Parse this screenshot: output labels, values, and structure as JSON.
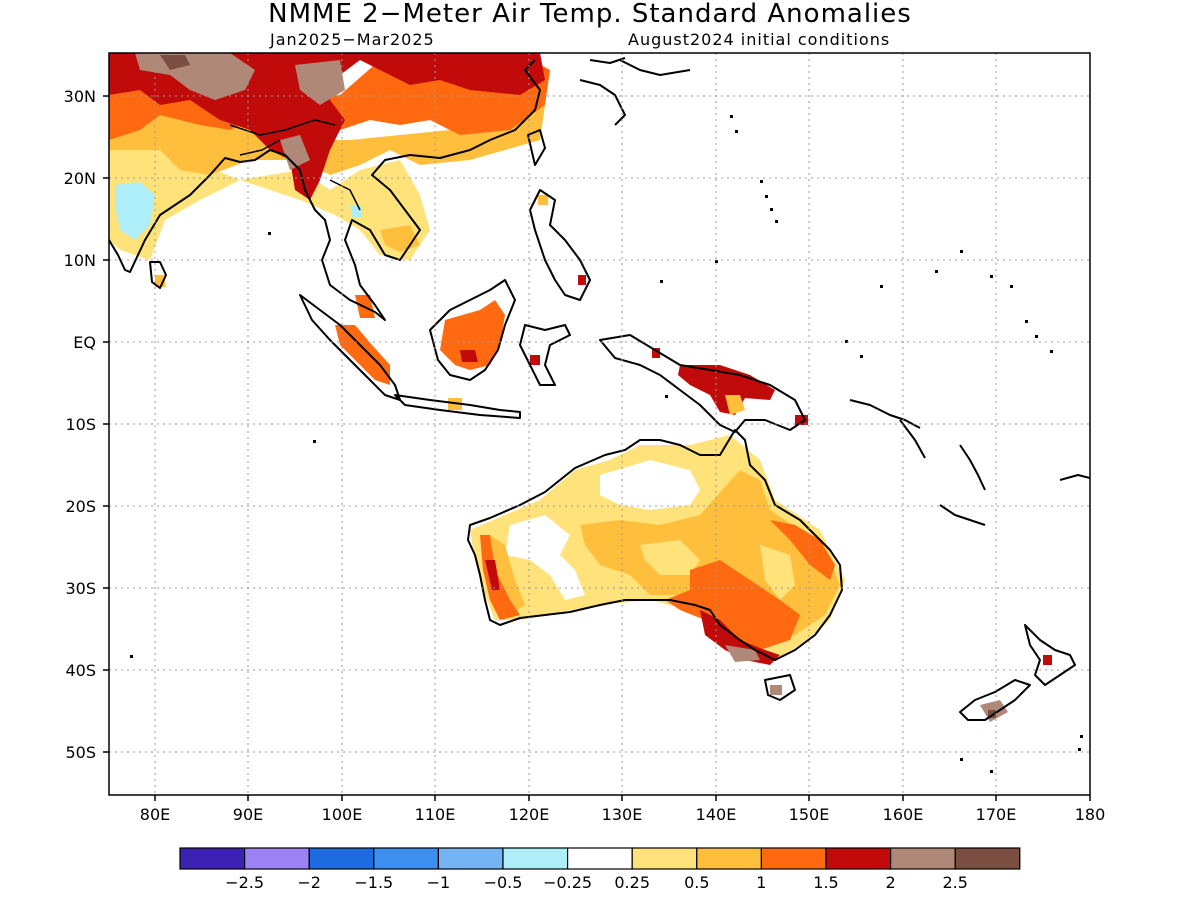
{
  "title": "NMME 2−Meter Air Temp. Standard Anomalies",
  "subtitle_left": "Jan2025−Mar2025",
  "subtitle_right": "August2024 initial conditions",
  "lat_labels": [
    "30N",
    "20N",
    "10N",
    "EQ",
    "10S",
    "20S",
    "30S",
    "40S",
    "50S"
  ],
  "lon_labels": [
    "80E",
    "90E",
    "100E",
    "110E",
    "120E",
    "130E",
    "140E",
    "150E",
    "160E",
    "170E",
    "180"
  ],
  "legend": {
    "colors": [
      "#3b22b5",
      "#9b82f5",
      "#1e6be0",
      "#3c8fee",
      "#74b4f5",
      "#aeeef8",
      "#ffffff",
      "#ffe27a",
      "#ffbf3c",
      "#ff6a10",
      "#c10a0a",
      "#b08878",
      "#7a4e40"
    ],
    "labels": [
      "−2.5",
      "−2",
      "−1.5",
      "−1",
      "−0.5",
      "−0.25",
      "0.25",
      "0.5",
      "1",
      "1.5",
      "2",
      "2.5"
    ]
  },
  "colors": {
    "very_warm": "#c10a0a",
    "warm": "#ff6a10",
    "mild_warm": "#ffbf3c",
    "slight_warm": "#ffe27a",
    "extreme_warm": "#b08878",
    "slight_cold": "#aeeef8"
  }
}
